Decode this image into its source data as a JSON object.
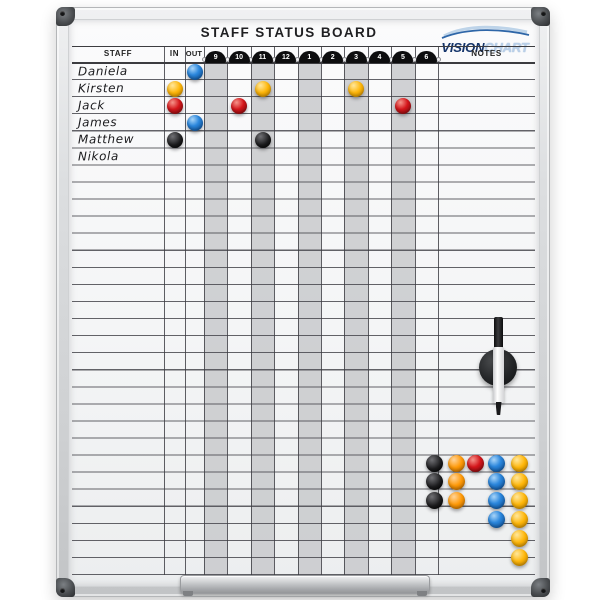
{
  "board": {
    "title": "STAFF STATUS BOARD",
    "brand": {
      "word1": "VISION",
      "word2": "CHART"
    },
    "headers": {
      "staff": "STAFF",
      "in": "IN",
      "out": "OUT",
      "notes": "NOTES"
    },
    "hours": [
      "9",
      "10",
      "11",
      "12",
      "1",
      "2",
      "3",
      "4",
      "5",
      "6"
    ],
    "staff_names": [
      "Daniela",
      "Kirsten",
      "Jack",
      "James",
      "Matthew",
      "Nikola"
    ],
    "status_magnets": [
      {
        "color": "blue",
        "staff": "Daniela",
        "row": 0,
        "col": "OUT"
      },
      {
        "color": "yellow",
        "staff": "Kirsten",
        "row": 1,
        "col": "IN"
      },
      {
        "color": "yellow",
        "staff": "Kirsten",
        "row": 1,
        "col": "11"
      },
      {
        "color": "yellow",
        "staff": "Kirsten",
        "row": 1,
        "col": "3"
      },
      {
        "color": "red",
        "staff": "Jack",
        "row": 2,
        "col": "IN"
      },
      {
        "color": "red",
        "staff": "Jack",
        "row": 2,
        "col": "10"
      },
      {
        "color": "red",
        "staff": "Jack",
        "row": 2,
        "col": "5"
      },
      {
        "color": "blue",
        "staff": "James",
        "row": 3,
        "col": "OUT"
      },
      {
        "color": "black",
        "staff": "Matthew",
        "row": 4,
        "col": "IN"
      },
      {
        "color": "black",
        "staff": "Matthew",
        "row": 4,
        "col": "11"
      }
    ],
    "spare_magnets": [
      {
        "color": "black",
        "count": 3
      },
      {
        "color": "orange",
        "count": 3
      },
      {
        "color": "red",
        "count": 1
      },
      {
        "color": "blue",
        "count": 4
      },
      {
        "color": "yellow",
        "count": 6
      }
    ],
    "accessories": [
      "whiteboard-marker",
      "magnetic-pen-holder",
      "pen-tray"
    ],
    "colors": {
      "magnet_blue": "#2b87dd",
      "magnet_red": "#d5161b",
      "magnet_yellow": "#ffb70a",
      "magnet_orange": "#ff9a08",
      "magnet_black": "#1d1d1f",
      "stripe_gray": "#c7c8cb",
      "brand_navy": "#15356b",
      "brand_lightblue": "#b9cfe8",
      "frame_silver": "#d6d8da"
    }
  }
}
